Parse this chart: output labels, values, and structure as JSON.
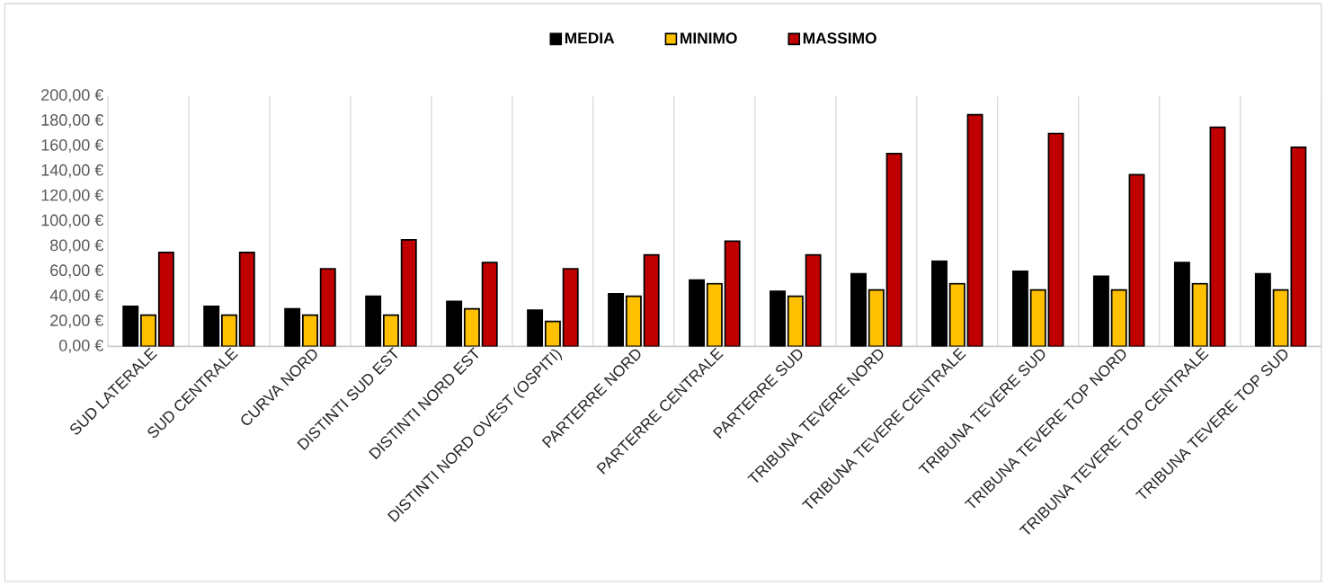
{
  "chart_data": {
    "type": "bar",
    "categories": [
      "SUD LATERALE",
      "SUD CENTRALE",
      "CURVA NORD",
      "DISTINTI SUD EST",
      "DISTINTI NORD EST",
      "DISTINTI NORD OVEST (OSPITI)",
      "PARTERRE NORD",
      "PARTERRE CENTRALE",
      "PARTERRE SUD",
      "TRIBUNA TEVERE NORD",
      "TRIBUNA TEVERE CENTRALE",
      "TRIBUNA TEVERE SUD",
      "TRIBUNA TEVERE TOP NORD",
      "TRIBUNA TEVERE TOP CENTRALE",
      "TRIBUNA TEVERE TOP SUD"
    ],
    "series": [
      {
        "name": "MEDIA",
        "color": "#000000",
        "values": [
          32,
          32,
          30,
          40,
          36,
          29,
          42,
          53,
          44,
          58,
          68,
          60,
          56,
          67,
          58
        ]
      },
      {
        "name": "MINIMO",
        "color": "#ffc000",
        "values": [
          25,
          25,
          25,
          25,
          30,
          20,
          40,
          50,
          40,
          45,
          50,
          45,
          45,
          50,
          45
        ]
      },
      {
        "name": "MASSIMO",
        "color": "#c00000",
        "values": [
          75,
          75,
          62,
          85,
          67,
          62,
          73,
          84,
          73,
          154,
          185,
          170,
          137,
          175,
          159
        ]
      }
    ],
    "ylim": [
      0,
      200
    ],
    "yticks": [
      {
        "value": 0,
        "label": "0,00 €"
      },
      {
        "value": 20,
        "label": "20,00 €"
      },
      {
        "value": 40,
        "label": "40,00 €"
      },
      {
        "value": 60,
        "label": "60,00 €"
      },
      {
        "value": 80,
        "label": "80,00 €"
      },
      {
        "value": 100,
        "label": "100,00 €"
      },
      {
        "value": 120,
        "label": "120,00 €"
      },
      {
        "value": 140,
        "label": "140,00 €"
      },
      {
        "value": 160,
        "label": "160,00 €"
      },
      {
        "value": 180,
        "label": "180,00 €"
      },
      {
        "value": 200,
        "label": "200,00 €"
      }
    ],
    "grid": "x",
    "legend": "top"
  }
}
